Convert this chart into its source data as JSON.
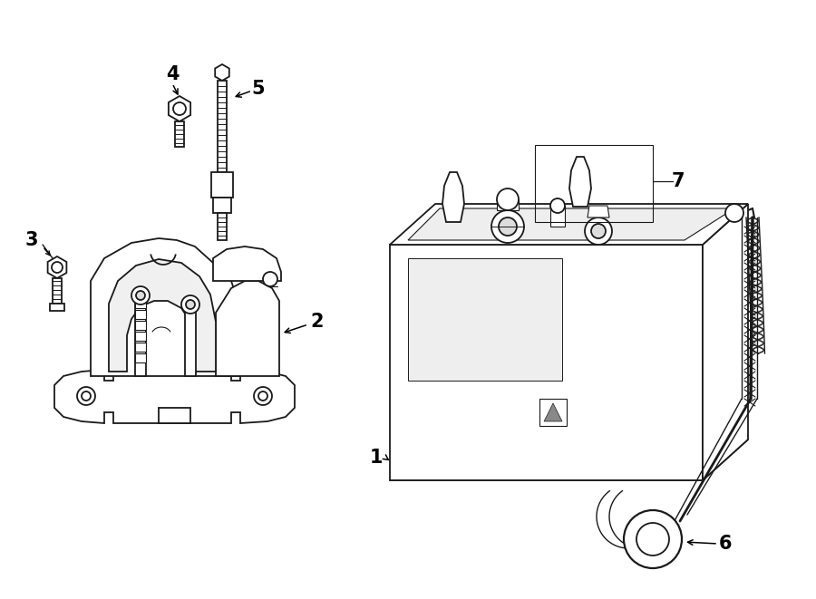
{
  "bg_color": "#ffffff",
  "line_color": "#1a1a1a",
  "fig_width": 9.0,
  "fig_height": 6.61,
  "lw": 1.3
}
